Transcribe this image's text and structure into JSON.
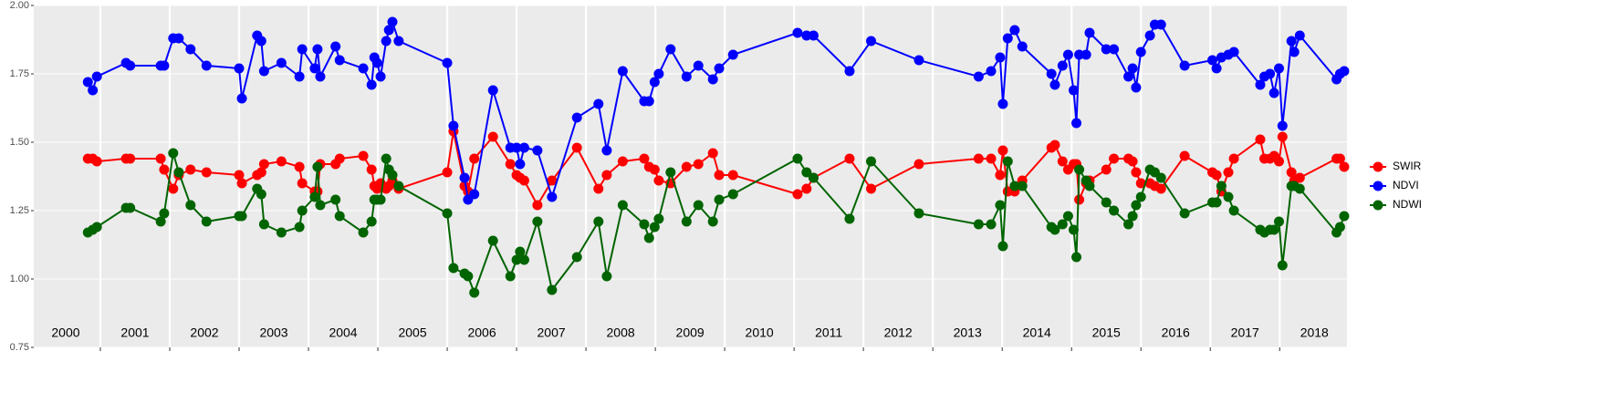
{
  "chart_data": {
    "type": "line",
    "x": [
      2000.82,
      2000.89,
      2000.95,
      2001.37,
      2001.43,
      2001.87,
      2001.92,
      2002.05,
      2002.13,
      2002.3,
      2002.53,
      2003.0,
      2003.04,
      2003.26,
      2003.32,
      2003.36,
      2003.61,
      2003.87,
      2003.91,
      2004.09,
      2004.13,
      2004.17,
      2004.39,
      2004.45,
      2004.79,
      2004.91,
      2004.95,
      2004.99,
      2005.04,
      2005.12,
      2005.16,
      2005.21,
      2005.3,
      2006.0,
      2006.09,
      2006.25,
      2006.3,
      2006.39,
      2006.66,
      2006.91,
      2007.0,
      2007.05,
      2007.11,
      2007.3,
      2007.51,
      2007.87,
      2008.18,
      2008.3,
      2008.53,
      2008.84,
      2008.91,
      2008.99,
      2009.05,
      2009.22,
      2009.45,
      2009.62,
      2009.83,
      2009.92,
      2010.12,
      2011.05,
      2011.18,
      2011.28,
      2011.8,
      2012.11,
      2012.8,
      2013.66,
      2013.84,
      2013.97,
      2014.01,
      2014.08,
      2014.18,
      2014.29,
      2014.71,
      2014.76,
      2014.87,
      2014.95,
      2015.03,
      2015.07,
      2015.11,
      2015.21,
      2015.26,
      2015.5,
      2015.61,
      2015.82,
      2015.88,
      2015.93,
      2016.0,
      2016.13,
      2016.2,
      2016.29,
      2016.63,
      2017.03,
      2017.09,
      2017.16,
      2017.26,
      2017.34,
      2017.72,
      2017.78,
      2017.86,
      2017.92,
      2017.99,
      2018.04,
      2018.17,
      2018.21,
      2018.29,
      2018.82,
      2018.87,
      2018.93
    ],
    "series": [
      {
        "name": "SWIR",
        "color": "#ff0000",
        "values": [
          1.44,
          1.44,
          1.43,
          1.44,
          1.44,
          1.44,
          1.4,
          1.33,
          1.38,
          1.4,
          1.39,
          1.38,
          1.35,
          1.38,
          1.39,
          1.42,
          1.43,
          1.41,
          1.35,
          1.32,
          1.32,
          1.42,
          1.42,
          1.44,
          1.45,
          1.4,
          1.34,
          1.33,
          1.35,
          1.33,
          1.34,
          1.36,
          1.33,
          1.39,
          1.54,
          1.34,
          1.32,
          1.44,
          1.52,
          1.42,
          1.38,
          1.37,
          1.36,
          1.27,
          1.36,
          1.48,
          1.33,
          1.38,
          1.43,
          1.44,
          1.41,
          1.4,
          1.36,
          1.35,
          1.41,
          1.42,
          1.46,
          1.38,
          1.38,
          1.31,
          1.33,
          1.37,
          1.44,
          1.33,
          1.42,
          1.44,
          1.44,
          1.38,
          1.47,
          1.32,
          1.32,
          1.36,
          1.48,
          1.49,
          1.43,
          1.4,
          1.42,
          1.42,
          1.29,
          1.35,
          1.36,
          1.4,
          1.44,
          1.44,
          1.43,
          1.39,
          1.35,
          1.35,
          1.34,
          1.33,
          1.45,
          1.39,
          1.38,
          1.32,
          1.39,
          1.44,
          1.51,
          1.44,
          1.44,
          1.45,
          1.43,
          1.52,
          1.39,
          1.36,
          1.37,
          1.44,
          1.44,
          1.41
        ]
      },
      {
        "name": "NDVI",
        "color": "#0000ff",
        "values": [
          1.72,
          1.69,
          1.74,
          1.79,
          1.78,
          1.78,
          1.78,
          1.88,
          1.88,
          1.84,
          1.78,
          1.77,
          1.66,
          1.89,
          1.87,
          1.76,
          1.79,
          1.74,
          1.84,
          1.77,
          1.84,
          1.74,
          1.85,
          1.8,
          1.77,
          1.71,
          1.81,
          1.79,
          1.74,
          1.87,
          1.91,
          1.94,
          1.87,
          1.79,
          1.56,
          1.37,
          1.29,
          1.31,
          1.69,
          1.48,
          1.48,
          1.42,
          1.48,
          1.47,
          1.3,
          1.59,
          1.64,
          1.47,
          1.76,
          1.65,
          1.65,
          1.72,
          1.75,
          1.84,
          1.74,
          1.78,
          1.73,
          1.77,
          1.82,
          1.9,
          1.89,
          1.89,
          1.76,
          1.87,
          1.8,
          1.74,
          1.76,
          1.81,
          1.64,
          1.88,
          1.91,
          1.85,
          1.75,
          1.71,
          1.78,
          1.82,
          1.69,
          1.57,
          1.82,
          1.82,
          1.9,
          1.84,
          1.84,
          1.74,
          1.77,
          1.7,
          1.83,
          1.89,
          1.93,
          1.93,
          1.78,
          1.8,
          1.77,
          1.81,
          1.82,
          1.83,
          1.71,
          1.74,
          1.75,
          1.68,
          1.77,
          1.56,
          1.87,
          1.83,
          1.89,
          1.73,
          1.75,
          1.76
        ]
      },
      {
        "name": "NDWI",
        "color": "#006400",
        "values": [
          1.17,
          1.18,
          1.19,
          1.26,
          1.26,
          1.21,
          1.24,
          1.46,
          1.39,
          1.27,
          1.21,
          1.23,
          1.23,
          1.33,
          1.31,
          1.2,
          1.17,
          1.19,
          1.25,
          1.3,
          1.41,
          1.27,
          1.29,
          1.23,
          1.17,
          1.21,
          1.29,
          1.29,
          1.29,
          1.44,
          1.4,
          1.38,
          1.34,
          1.24,
          1.04,
          1.02,
          1.01,
          0.95,
          1.14,
          1.01,
          1.07,
          1.1,
          1.07,
          1.21,
          0.96,
          1.08,
          1.21,
          1.01,
          1.27,
          1.2,
          1.15,
          1.19,
          1.22,
          1.39,
          1.21,
          1.27,
          1.21,
          1.29,
          1.31,
          1.44,
          1.39,
          1.37,
          1.22,
          1.43,
          1.24,
          1.2,
          1.2,
          1.27,
          1.12,
          1.43,
          1.34,
          1.34,
          1.19,
          1.18,
          1.2,
          1.23,
          1.18,
          1.08,
          1.4,
          1.36,
          1.34,
          1.28,
          1.25,
          1.2,
          1.23,
          1.27,
          1.3,
          1.4,
          1.39,
          1.37,
          1.24,
          1.28,
          1.28,
          1.34,
          1.3,
          1.25,
          1.18,
          1.17,
          1.18,
          1.18,
          1.21,
          1.05,
          1.34,
          1.34,
          1.33,
          1.17,
          1.19,
          1.23
        ]
      }
    ],
    "xlim": [
      2000.04,
      2018.97
    ],
    "xticks": [
      {
        "value": 2000.5,
        "label": "2000"
      },
      {
        "value": 2001.5,
        "label": "2001"
      },
      {
        "value": 2002.5,
        "label": "2002"
      },
      {
        "value": 2003.5,
        "label": "2003"
      },
      {
        "value": 2004.5,
        "label": "2004"
      },
      {
        "value": 2005.5,
        "label": "2005"
      },
      {
        "value": 2006.5,
        "label": "2006"
      },
      {
        "value": 2007.5,
        "label": "2007"
      },
      {
        "value": 2008.5,
        "label": "2008"
      },
      {
        "value": 2009.5,
        "label": "2009"
      },
      {
        "value": 2010.5,
        "label": "2010"
      },
      {
        "value": 2011.5,
        "label": "2011"
      },
      {
        "value": 2012.5,
        "label": "2012"
      },
      {
        "value": 2013.5,
        "label": "2013"
      },
      {
        "value": 2014.5,
        "label": "2014"
      },
      {
        "value": 2015.5,
        "label": "2015"
      },
      {
        "value": 2016.5,
        "label": "2016"
      },
      {
        "value": 2017.5,
        "label": "2017"
      },
      {
        "value": 2018.5,
        "label": "2018"
      }
    ],
    "xbreaks": [
      2001,
      2002,
      2003,
      2004,
      2005,
      2006,
      2007,
      2008,
      2009,
      2010,
      2011,
      2012,
      2013,
      2014,
      2015,
      2016,
      2017,
      2018
    ],
    "ylim": [
      0.75,
      2.0
    ],
    "yticks": [
      0.75,
      {
        "value": 1,
        "label": "1.00"
      },
      1.25,
      {
        "value": 1.5,
        "label": "1.50"
      },
      1.75,
      {
        "value": 2,
        "label": "2.00"
      }
    ],
    "grid": true,
    "legend": "right"
  }
}
